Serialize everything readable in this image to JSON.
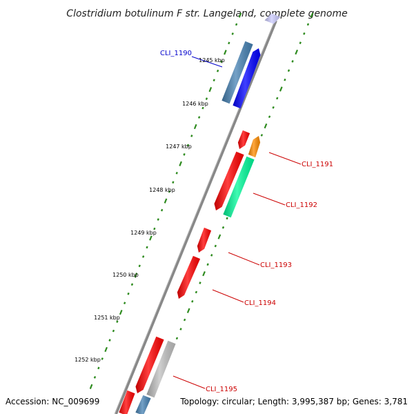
{
  "title": "Clostridium botulinum F str. Langeland, complete genome",
  "accession": "Accession: NC_009699",
  "topology": "Topology: circular; Length: 3,995,387 bp; Genes: 3,781",
  "colors": {
    "backbone": "#808080",
    "tick": "#2e8b1f",
    "gene_label_blue": "#0000cc",
    "gene_label_red": "#cc0000",
    "leader_line": "#cc0000",
    "feature_red": "#ff0000",
    "feature_blue": "#0000ff",
    "feature_steel": "#4682b4",
    "feature_orange": "#ff8c00",
    "feature_aqua": "#00fa9a",
    "feature_grey": "#c0c0c0",
    "feature_lavender": "#ccccff"
  },
  "kbp_labels": [
    "1245 kbp",
    "1246 kbp",
    "1247 kbp",
    "1248 kbp",
    "1249 kbp",
    "1250 kbp",
    "1251 kbp",
    "1252 kbp"
  ],
  "gene_labels": [
    "CLI_1190",
    "CLI_1191",
    "CLI_1192",
    "CLI_1193",
    "CLI_1194",
    "CLI_1195"
  ]
}
